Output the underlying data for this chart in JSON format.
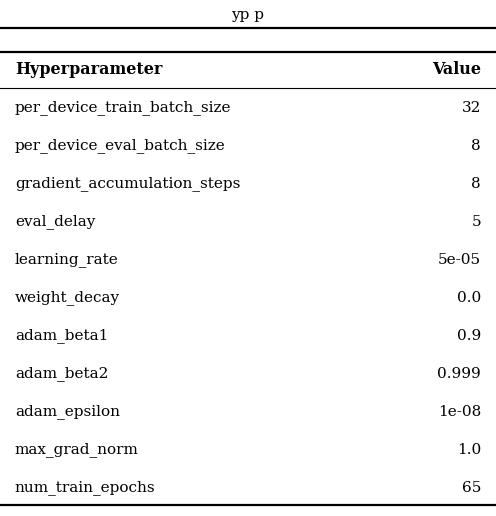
{
  "headers": [
    "Hyperparameter",
    "Value"
  ],
  "rows": [
    [
      "per_device_train_batch_size",
      "32"
    ],
    [
      "per_device_eval_batch_size",
      "8"
    ],
    [
      "gradient_accumulation_steps",
      "8"
    ],
    [
      "eval_delay",
      "5"
    ],
    [
      "learning_rate",
      "5e-05"
    ],
    [
      "weight_decay",
      "0.0"
    ],
    [
      "adam_beta1",
      "0.9"
    ],
    [
      "adam_beta2",
      "0.999"
    ],
    [
      "adam_epsilon",
      "1e-08"
    ],
    [
      "max_grad_norm",
      "1.0"
    ],
    [
      "num_train_epochs",
      "65"
    ]
  ],
  "header_fontsize": 11.5,
  "row_fontsize": 11.0,
  "background_color": "#ffffff",
  "text_color": "#000000",
  "line_color": "#000000"
}
